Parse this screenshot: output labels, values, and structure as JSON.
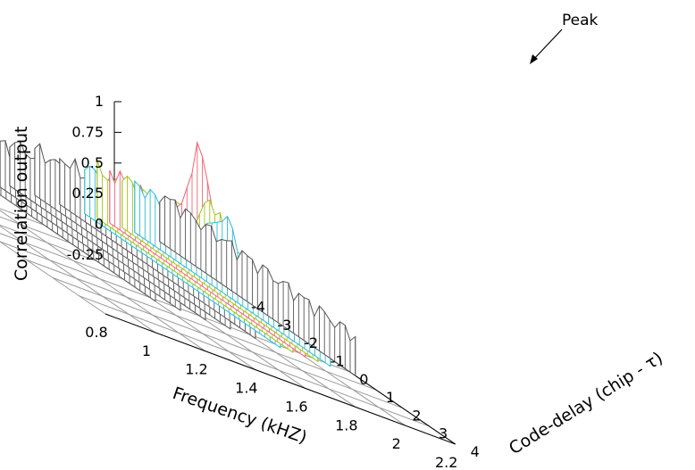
{
  "chart_data": {
    "type": "3d-waterfall",
    "title": "",
    "xlabel": "Frequency (kHZ)",
    "ylabel": "Code-delay (chip - τ)",
    "zlabel": "Correlation output",
    "x_ticks": [
      "0.8",
      "1",
      "1.2",
      "1.4",
      "1.6",
      "1.8",
      "2",
      "2.2"
    ],
    "y_ticks": [
      "-4",
      "-3",
      "-2",
      "-1",
      "0",
      "1",
      "2",
      "3",
      "4"
    ],
    "z_ticks": [
      "-0.25",
      "0",
      "0.25",
      "0.5",
      "0.75",
      "1"
    ],
    "xlim": [
      0.8,
      2.2
    ],
    "ylim": [
      -4,
      4
    ],
    "zlim": [
      -0.25,
      1
    ],
    "grid": true,
    "annotation": {
      "text": "Peak",
      "x": 1.6,
      "y": 0,
      "z": 1
    },
    "slices": [
      {
        "frequency": 1.0,
        "color": "#555555",
        "base": 0.02,
        "amp": 0.0
      },
      {
        "frequency": 1.1,
        "color": "#555555",
        "base": 0.03,
        "amp": 0.0
      },
      {
        "frequency": 1.2,
        "color": "#555555",
        "base": 0.04,
        "amp": 0.0
      },
      {
        "frequency": 1.3,
        "color": "#555555",
        "base": 0.05,
        "amp": 0.0
      },
      {
        "frequency": 1.4,
        "color": "#555555",
        "base": 0.05,
        "amp": 0.0
      },
      {
        "frequency": 1.5,
        "color": "#2bbcd4",
        "base": 0.06,
        "amp": 0.28
      },
      {
        "frequency": 1.55,
        "color": "#9fc31a",
        "base": 0.07,
        "amp": 0.38
      },
      {
        "frequency": 1.6,
        "color": "#f06474",
        "base": 0.1,
        "amp": 0.88
      },
      {
        "frequency": 1.65,
        "color": "#9fc31a",
        "base": 0.08,
        "amp": 0.42
      },
      {
        "frequency": 1.7,
        "color": "#2bbcd4",
        "base": 0.07,
        "amp": 0.32
      },
      {
        "frequency": 1.8,
        "color": "#555555",
        "base": 0.06,
        "amp": 0.0
      }
    ]
  }
}
